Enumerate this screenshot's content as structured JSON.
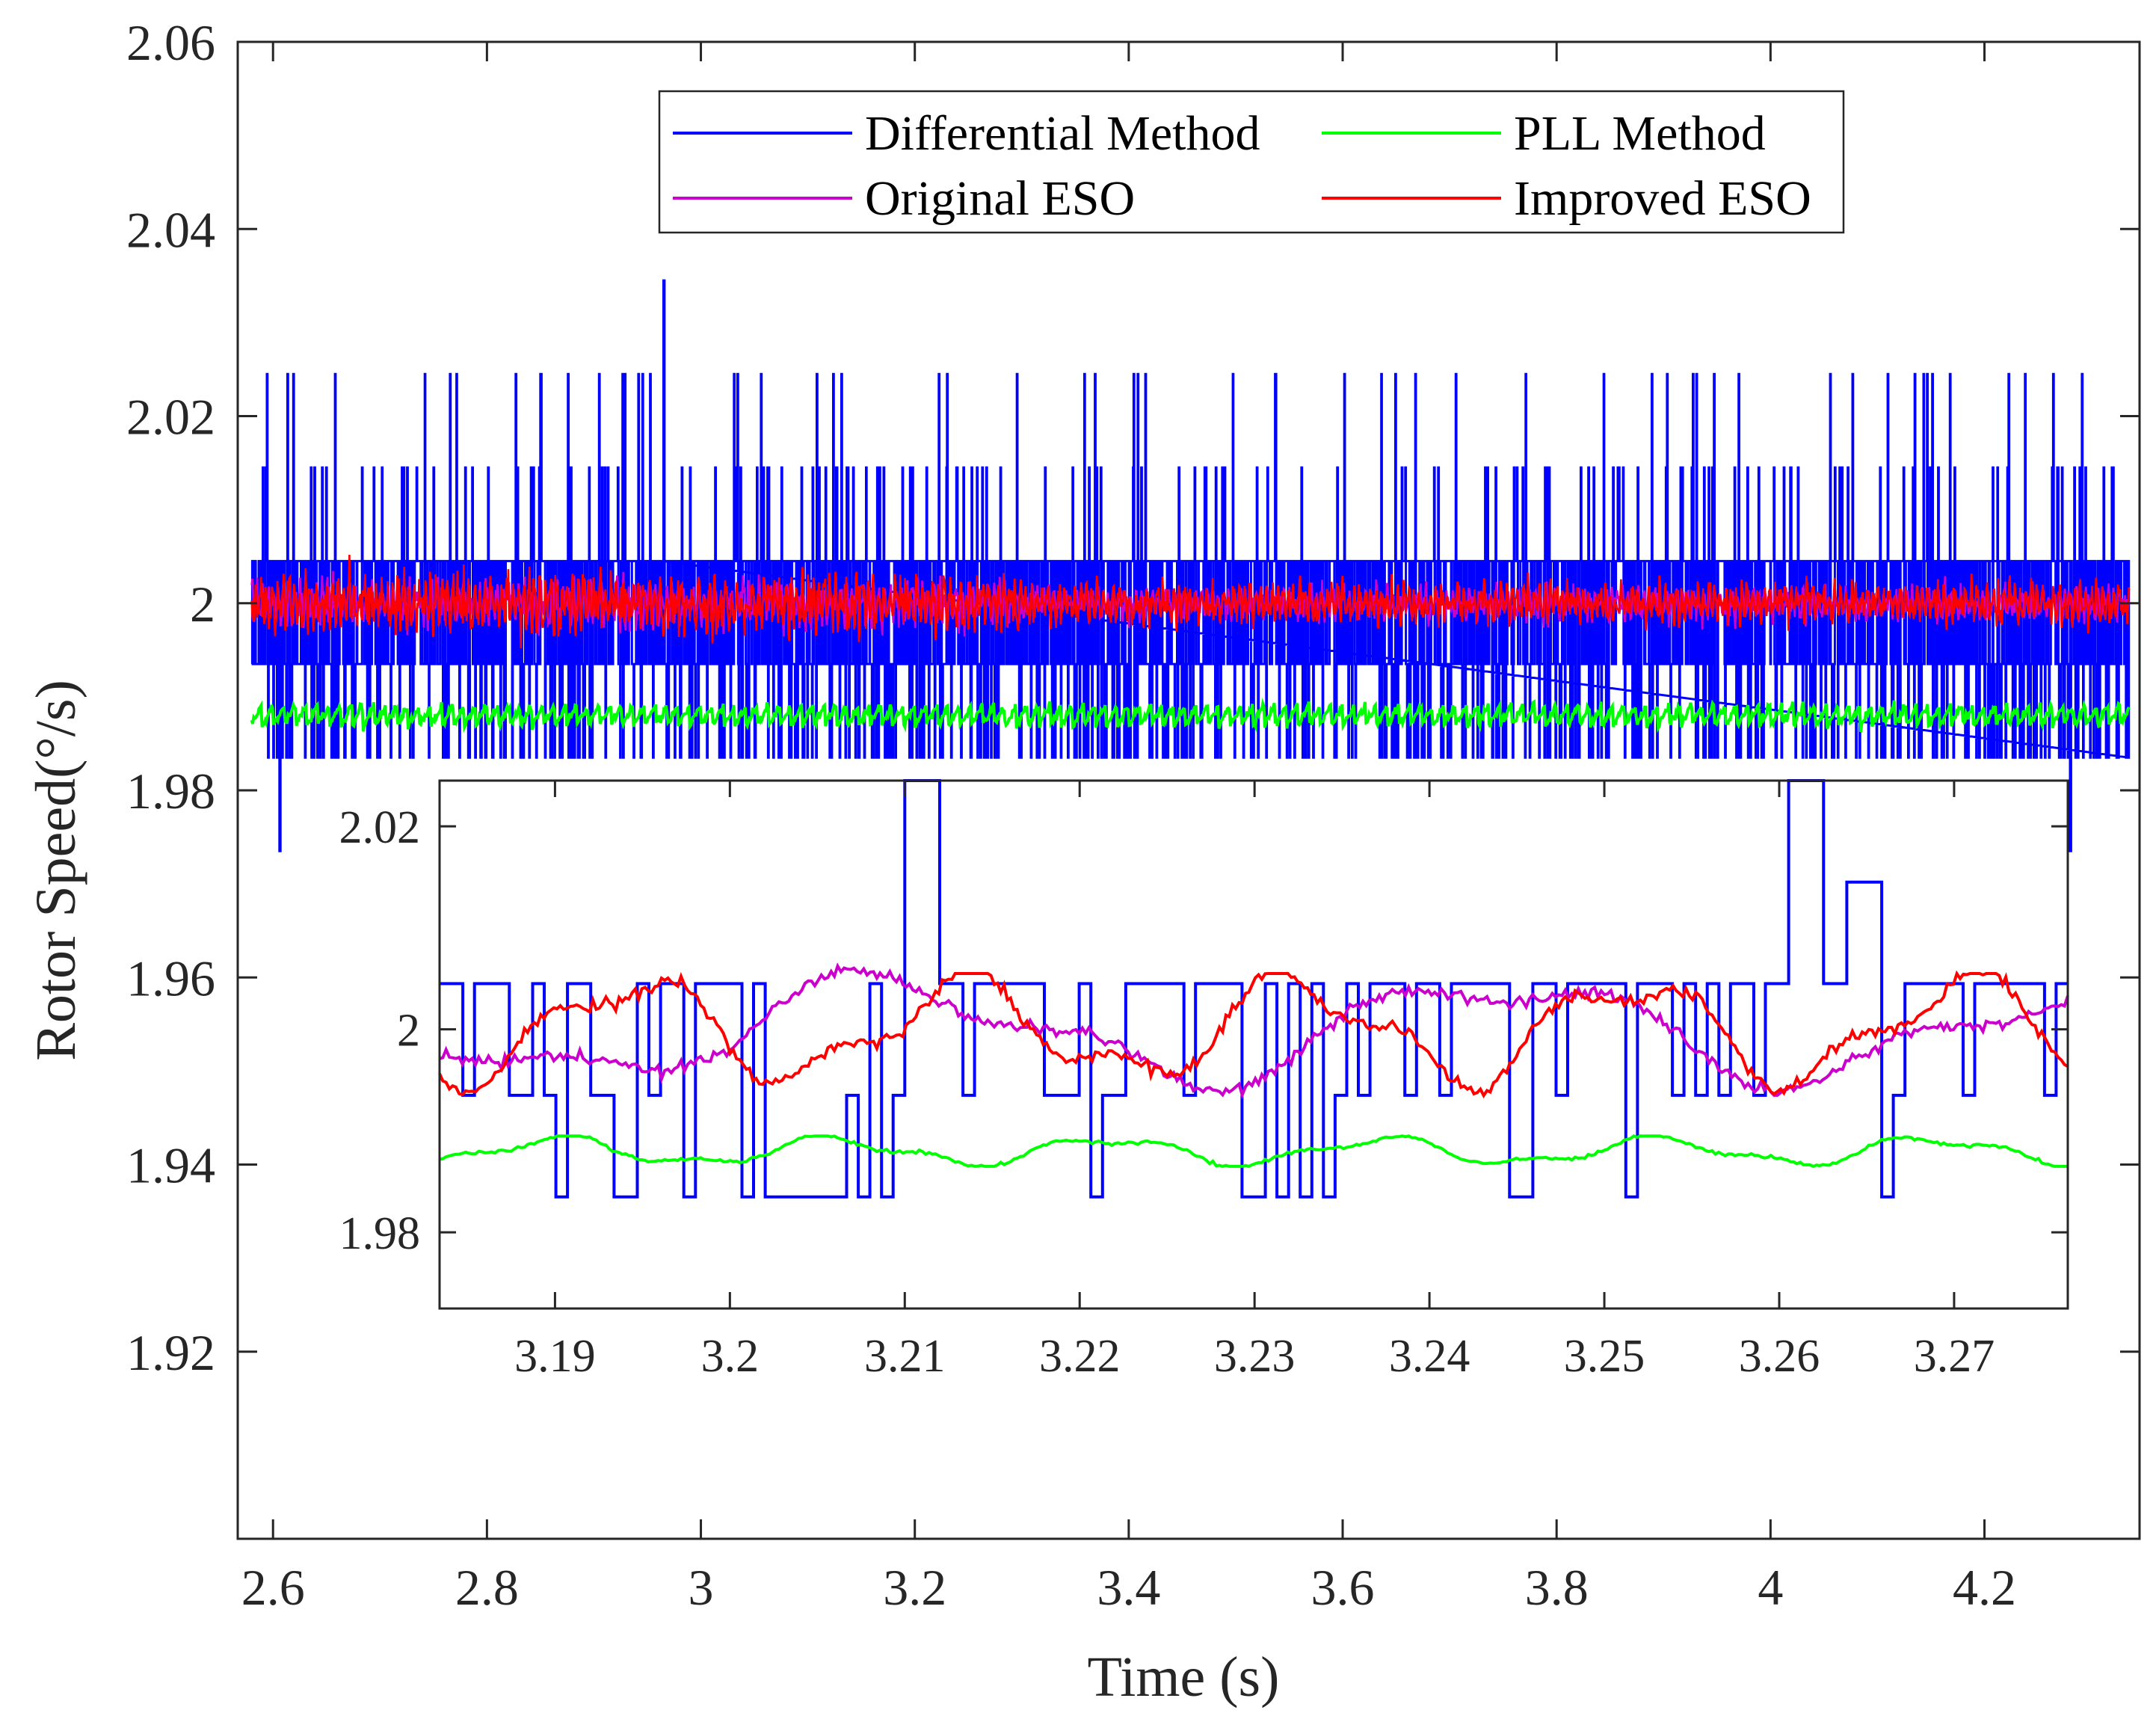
{
  "chart_data": [
    {
      "type": "line",
      "xlabel": "Time (s)",
      "ylabel": "Rotor Speed(°/s)",
      "xlim": [
        2.567,
        4.345
      ],
      "ylim": [
        1.9,
        2.06
      ],
      "x_ticks": [
        2.6,
        2.8,
        3.0,
        3.2,
        3.4,
        3.6,
        3.8,
        4.0,
        4.2
      ],
      "x_tick_labels": [
        "2.6",
        "2.8",
        "3",
        "3.2",
        "3.4",
        "3.6",
        "3.8",
        "4",
        "4.2"
      ],
      "y_ticks": [
        1.92,
        1.94,
        1.96,
        1.98,
        2.0,
        2.02,
        2.04,
        2.06
      ],
      "y_tick_labels": [
        "1.92",
        "1.94",
        "1.96",
        "1.98",
        "2",
        "2.02",
        "2.04",
        "2.06"
      ],
      "grid": false,
      "legend_position": "top-right",
      "series": [
        {
          "name": "Differential Method",
          "color": "#0000ff",
          "typical_value": 2.0,
          "noise_range": [
            1.9835,
            2.0045
          ],
          "peak_max": 2.0345,
          "peak_min": 1.9735
        },
        {
          "name": "PLL Method",
          "color": "#00ff00",
          "typical_value": 1.988,
          "noise_range": [
            1.986,
            1.99
          ]
        },
        {
          "name": "Original ESO",
          "color": "#cc00cc",
          "typical_value": 2.0,
          "noise_range": [
            1.994,
            2.006
          ]
        },
        {
          "name": "Improved ESO",
          "color": "#ff0000",
          "typical_value": 2.0,
          "noise_range": [
            1.993,
            2.007
          ]
        }
      ]
    },
    {
      "type": "line",
      "inset": true,
      "xlim": [
        3.1834,
        3.2765
      ],
      "ylim": [
        1.9725,
        2.0245
      ],
      "x_ticks": [
        3.19,
        3.2,
        3.21,
        3.22,
        3.23,
        3.24,
        3.25,
        3.26,
        3.27
      ],
      "x_tick_labels": [
        "3.19",
        "3.2",
        "3.21",
        "3.22",
        "3.23",
        "3.24",
        "3.25",
        "3.26",
        "3.27"
      ],
      "y_ticks": [
        1.98,
        2.0,
        2.02
      ],
      "y_tick_labels": [
        "1.98",
        "2",
        "2.02"
      ],
      "series": [
        {
          "name": "Differential Method",
          "color": "#0000ff",
          "levels": [
            1.9835,
            1.9935,
            2.0045,
            2.0145,
            2.0245
          ]
        },
        {
          "name": "PLL Method",
          "color": "#00ff00",
          "range": [
            1.9865,
            1.9895
          ]
        },
        {
          "name": "Original ESO",
          "color": "#cc00cc",
          "range": [
            1.9935,
            2.0065
          ]
        },
        {
          "name": "Improved ESO",
          "color": "#ff0000",
          "range": [
            1.993,
            2.0055
          ]
        }
      ]
    }
  ]
}
